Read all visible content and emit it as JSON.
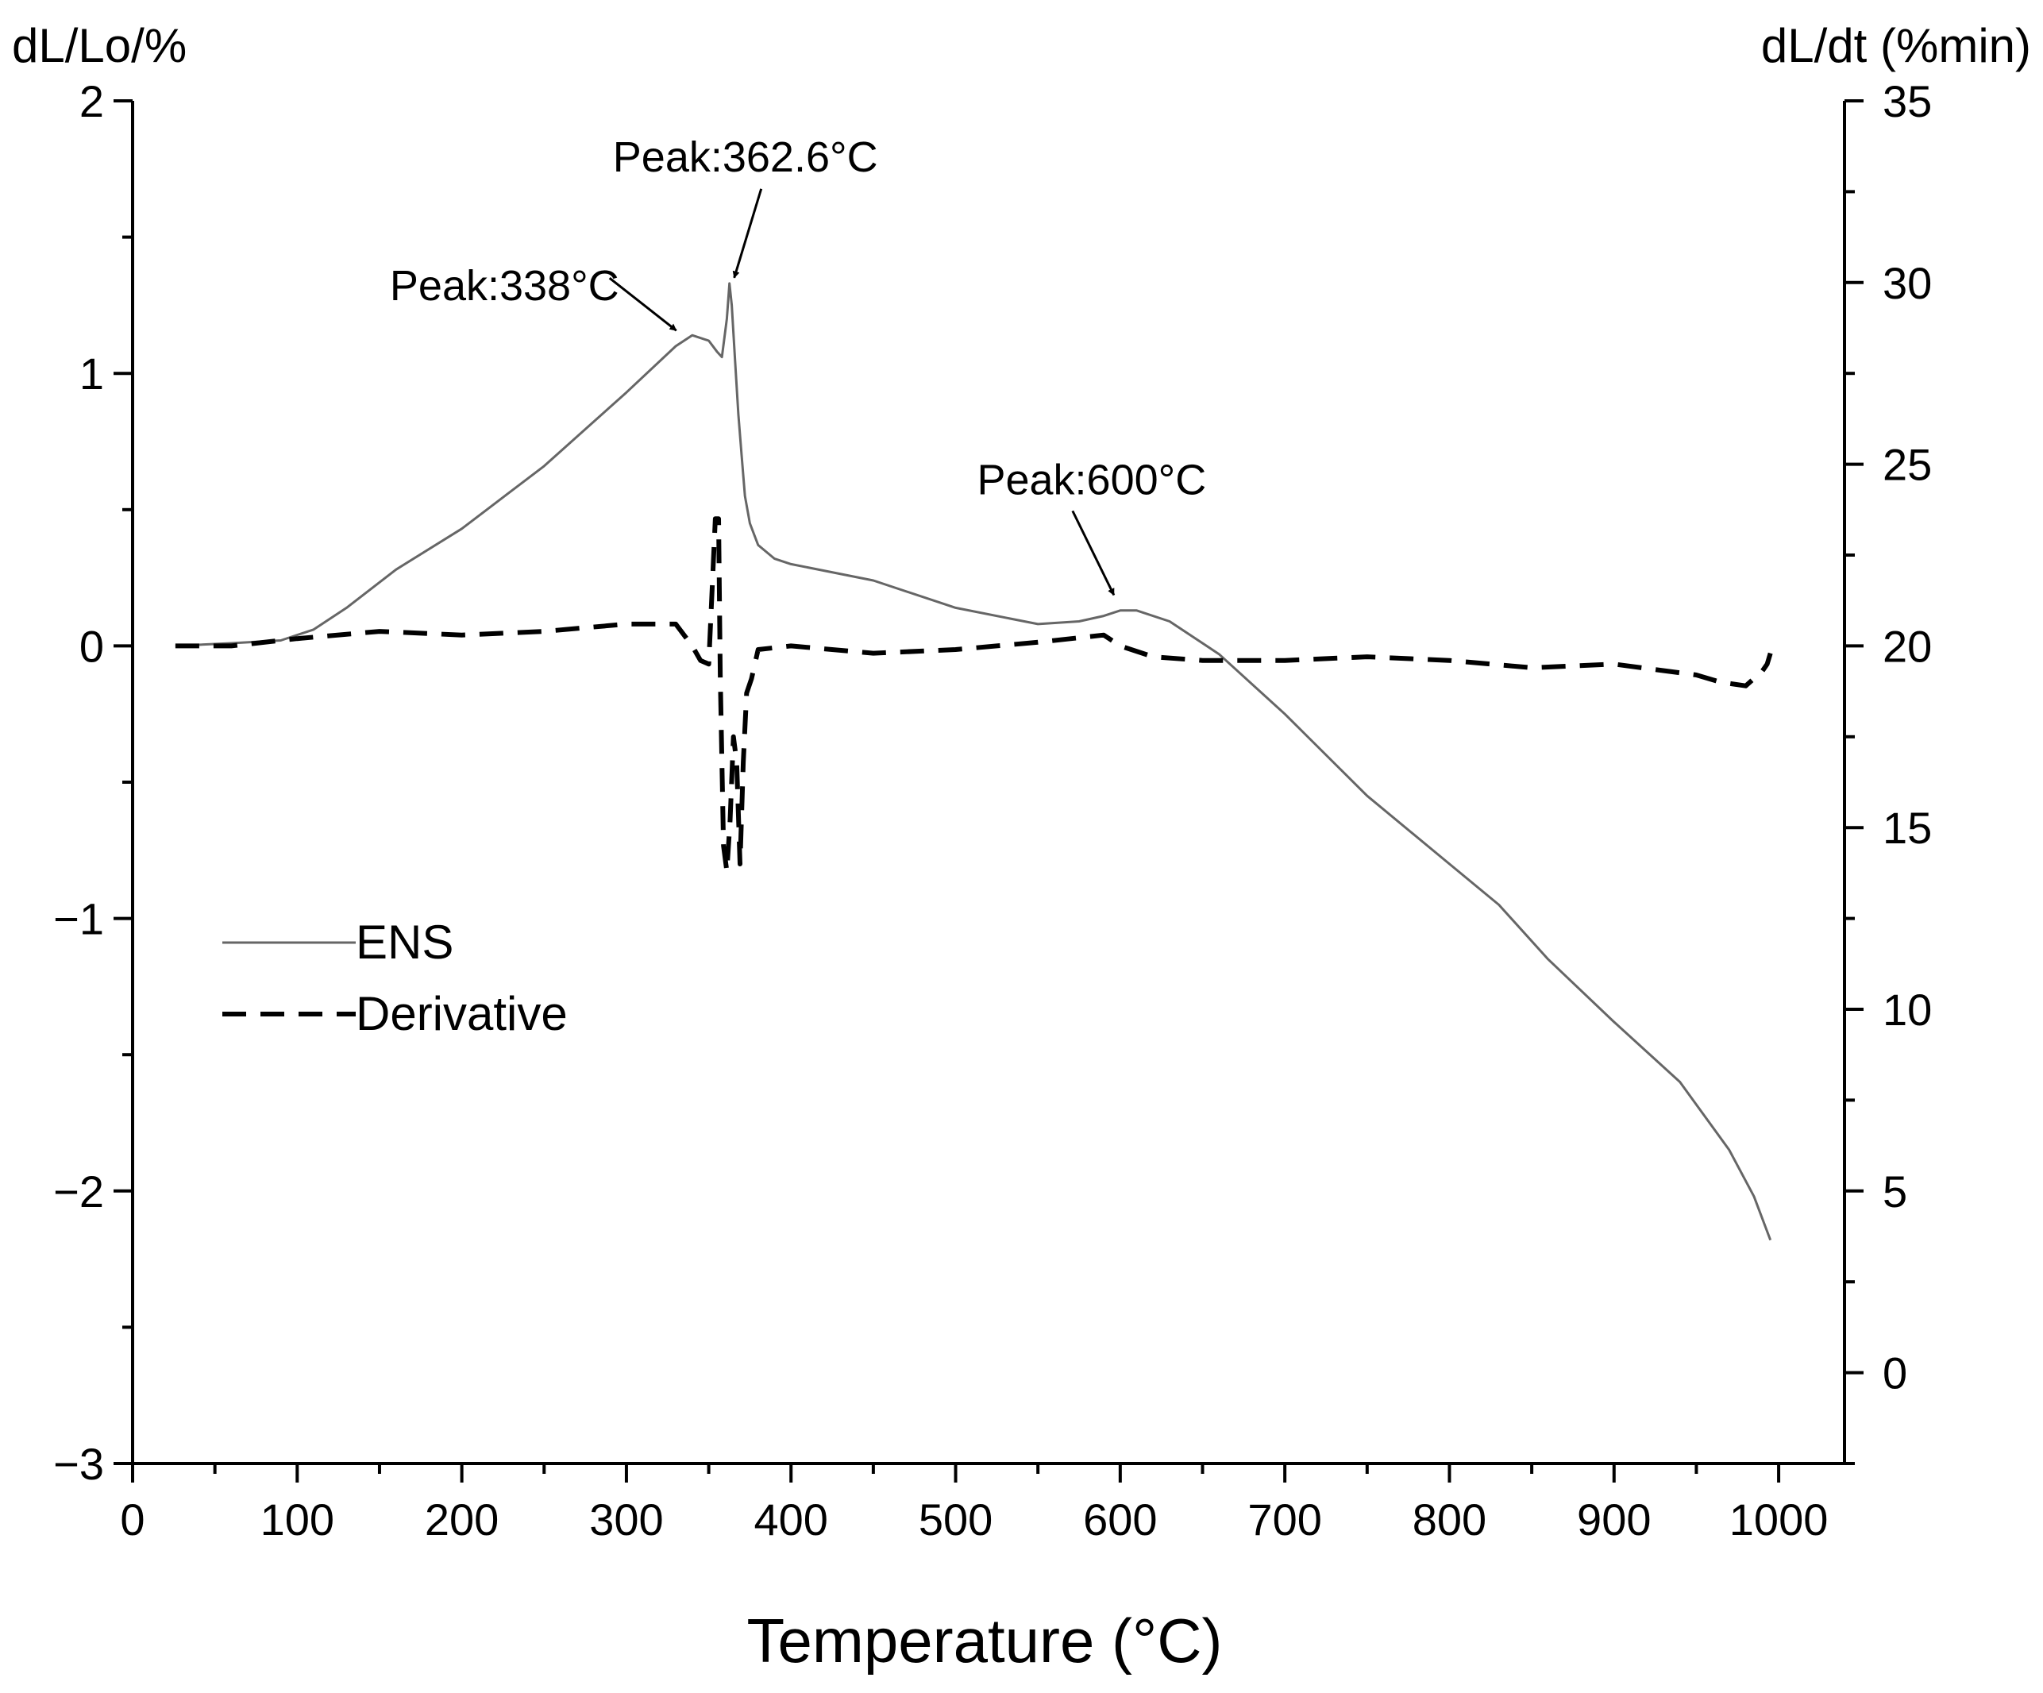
{
  "chart_data": {
    "type": "line",
    "xlabel": "Temperature (°C)",
    "ylabel_left": "dL/Lo/%",
    "ylabel_right": "dL/dt (%min)",
    "xlim": [
      0,
      1040
    ],
    "ylim_left": [
      -3,
      2
    ],
    "ylim_right": [
      -2.5,
      35
    ],
    "x_ticks": [
      0,
      100,
      200,
      300,
      400,
      500,
      600,
      700,
      800,
      900,
      1000
    ],
    "y_left_ticks": [
      -3,
      -2,
      -1,
      0,
      1,
      2
    ],
    "y_right_ticks": [
      0,
      5,
      10,
      15,
      20,
      25,
      30,
      35
    ],
    "y_left_tick_labels": [
      "−3",
      "−2",
      "−1",
      "0",
      "1",
      "2"
    ],
    "legend": {
      "placement": "middle-left",
      "entries": [
        "ENS",
        "Derivative"
      ]
    },
    "series": [
      {
        "name": "ENS",
        "axis": "left",
        "style": "solid",
        "color": "#666666",
        "x": [
          26,
          60,
          90,
          110,
          130,
          160,
          200,
          250,
          300,
          330,
          340,
          350,
          355,
          358,
          361,
          362.6,
          364,
          366,
          368,
          370,
          372,
          375,
          380,
          390,
          400,
          450,
          500,
          550,
          575,
          590,
          600,
          610,
          630,
          660,
          700,
          750,
          800,
          830,
          860,
          900,
          940,
          970,
          985,
          995
        ],
        "values": [
          0.0,
          0.01,
          0.02,
          0.06,
          0.14,
          0.28,
          0.43,
          0.66,
          0.93,
          1.1,
          1.14,
          1.12,
          1.08,
          1.06,
          1.2,
          1.33,
          1.25,
          1.05,
          0.85,
          0.7,
          0.55,
          0.45,
          0.37,
          0.32,
          0.3,
          0.24,
          0.14,
          0.08,
          0.09,
          0.11,
          0.13,
          0.13,
          0.09,
          -0.03,
          -0.25,
          -0.55,
          -0.8,
          -0.95,
          -1.15,
          -1.38,
          -1.6,
          -1.85,
          -2.02,
          -2.18
        ]
      },
      {
        "name": "Derivative",
        "axis": "right",
        "style": "dashed",
        "color": "#000000",
        "x": [
          26,
          60,
          100,
          150,
          200,
          250,
          300,
          330,
          340,
          345,
          350,
          354,
          356,
          357,
          359,
          361,
          363,
          365,
          367,
          369,
          371,
          373,
          376,
          380,
          400,
          450,
          500,
          550,
          590,
          600,
          620,
          650,
          700,
          750,
          800,
          850,
          900,
          950,
          965,
          980,
          990,
          993,
          995
        ],
        "values": [
          20.0,
          20.0,
          20.2,
          20.4,
          20.3,
          20.4,
          20.6,
          20.6,
          20.0,
          19.6,
          19.5,
          23.5,
          23.5,
          19.2,
          14.5,
          13.8,
          15.2,
          17.5,
          16.8,
          14.0,
          16.8,
          18.7,
          19.1,
          19.9,
          20.0,
          19.8,
          19.9,
          20.1,
          20.3,
          20.0,
          19.7,
          19.6,
          19.6,
          19.7,
          19.6,
          19.4,
          19.5,
          19.2,
          19.0,
          18.9,
          19.3,
          19.5,
          19.8
        ]
      }
    ],
    "annotations": [
      {
        "text": "Peak:338°C",
        "x": 338,
        "y": 1.14,
        "axis": "left"
      },
      {
        "text": "Peak:362.6°C",
        "x": 362.6,
        "y": 1.31,
        "axis": "left"
      },
      {
        "text": "Peak:600°C",
        "x": 600,
        "y": 0.14,
        "axis": "left"
      }
    ]
  }
}
